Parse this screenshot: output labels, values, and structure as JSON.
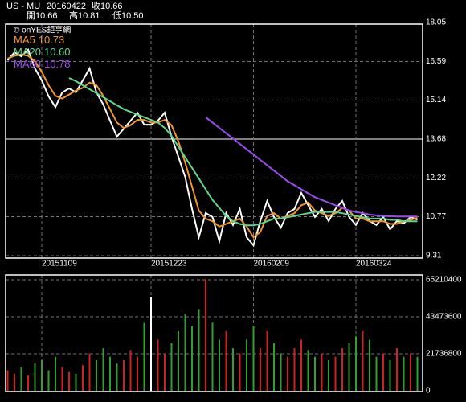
{
  "chart_data": [
    {
      "type": "line",
      "title": "US - MU",
      "date": "20160422",
      "close_label": "收10.66",
      "quote": [
        "開10.66",
        "高10.81",
        "低10.50"
      ],
      "source": "© onYES鉅亨網",
      "ylim": [
        9.31,
        18.05
      ],
      "yticks": [
        9.31,
        10.77,
        12.22,
        13.68,
        15.14,
        16.59,
        18.05
      ],
      "grid": true,
      "categories": [
        null,
        null,
        null,
        null,
        null,
        "20151109",
        null,
        null,
        null,
        null,
        null,
        null,
        null,
        null,
        null,
        null,
        null,
        null,
        null,
        null,
        null,
        "20151223",
        null,
        null,
        null,
        null,
        null,
        null,
        null,
        null,
        null,
        null,
        null,
        null,
        null,
        null,
        "20160209",
        null,
        null,
        null,
        null,
        null,
        null,
        null,
        null,
        null,
        null,
        null,
        null,
        null,
        null,
        "20160324",
        null,
        null,
        null,
        null,
        null,
        null,
        null,
        null,
        null
      ],
      "series": [
        {
          "color": "#ffffff",
          "values": [
            16.63,
            16.93,
            16.78,
            17.03,
            16.33,
            15.88,
            15.28,
            14.88,
            15.43,
            15.58,
            15.43,
            15.88,
            16.33,
            15.43,
            14.98,
            14.37,
            13.77,
            14.07,
            14.37,
            14.67,
            14.22,
            14.22,
            14.37,
            14.67,
            13.77,
            13.02,
            12.26,
            11.06,
            10.0,
            10.91,
            10.76,
            9.85,
            10.91,
            10.46,
            11.06,
            10.0,
            9.7,
            10.61,
            11.36,
            10.76,
            10.36,
            10.91,
            11.06,
            11.66,
            11.21,
            10.76,
            11.06,
            10.61,
            11.06,
            11.36,
            10.76,
            10.46,
            10.91,
            10.61,
            10.46,
            10.76,
            10.3,
            10.61,
            10.52,
            10.76,
            10.66
          ]
        },
        {
          "name": "MA5",
          "legend_value": "10.73",
          "color": "#f0962c",
          "values": [
            16.7,
            16.8,
            16.85,
            16.8,
            16.6,
            16.2,
            15.7,
            15.3,
            15.2,
            15.35,
            15.5,
            15.6,
            15.8,
            15.7,
            15.3,
            14.8,
            14.3,
            14.1,
            14.2,
            14.4,
            14.4,
            14.3,
            14.3,
            14.4,
            14.2,
            13.6,
            12.8,
            11.9,
            11.0,
            10.7,
            10.6,
            10.4,
            10.5,
            10.6,
            10.7,
            10.4,
            10.0,
            10.2,
            10.8,
            10.9,
            10.7,
            10.8,
            10.9,
            11.2,
            11.3,
            11.0,
            10.9,
            10.8,
            10.9,
            11.1,
            11.0,
            10.7,
            10.7,
            10.6,
            10.6,
            10.6,
            10.5,
            10.5,
            10.6,
            10.65,
            10.73
          ]
        },
        {
          "name": "MA20",
          "legend_value": "10.60",
          "color": "#5ed68a",
          "values": [
            null,
            null,
            null,
            null,
            null,
            null,
            null,
            null,
            null,
            15.97,
            15.85,
            15.7,
            15.55,
            15.4,
            15.25,
            15.1,
            14.95,
            14.8,
            14.7,
            14.6,
            14.5,
            14.4,
            14.3,
            14.1,
            13.8,
            13.4,
            13.0,
            12.6,
            12.2,
            11.8,
            11.4,
            11.1,
            10.8,
            10.6,
            10.5,
            10.45,
            10.45,
            10.5,
            10.6,
            10.7,
            10.7,
            10.75,
            10.8,
            10.85,
            10.9,
            10.95,
            10.95,
            10.95,
            10.95,
            10.9,
            10.85,
            10.8,
            10.75,
            10.7,
            10.7,
            10.7,
            10.65,
            10.65,
            10.6,
            10.6,
            10.6
          ]
        },
        {
          "name": "MA60",
          "legend_value": "10.78",
          "color": "#9a4cf0",
          "values": [
            null,
            null,
            null,
            null,
            null,
            null,
            null,
            null,
            null,
            null,
            null,
            null,
            null,
            null,
            null,
            null,
            null,
            null,
            null,
            null,
            null,
            null,
            null,
            null,
            null,
            null,
            null,
            null,
            null,
            14.5,
            14.3,
            14.1,
            13.9,
            13.7,
            13.5,
            13.3,
            13.1,
            12.9,
            12.7,
            12.5,
            12.3,
            12.1,
            11.95,
            11.8,
            11.65,
            11.5,
            11.4,
            11.3,
            11.2,
            11.1,
            11.0,
            10.95,
            10.9,
            10.85,
            10.82,
            10.8,
            10.79,
            10.78,
            10.78,
            10.78,
            10.78
          ]
        }
      ]
    },
    {
      "type": "bar",
      "ylim": [
        0,
        65210400
      ],
      "yticks": [
        0,
        21736800,
        43473600,
        65210400
      ],
      "grid": true,
      "values": [
        12000000,
        10000000,
        14000000,
        9000000,
        16000000,
        18000000,
        12000000,
        20000000,
        14000000,
        11000000,
        10000000,
        15000000,
        22000000,
        18000000,
        25000000,
        20000000,
        16000000,
        18000000,
        24000000,
        20000000,
        40000000,
        55000000,
        30000000,
        22000000,
        28000000,
        35000000,
        45000000,
        38000000,
        48000000,
        65000000,
        40000000,
        30000000,
        35000000,
        25000000,
        22000000,
        30000000,
        38000000,
        25000000,
        35000000,
        28000000,
        22000000,
        20000000,
        25000000,
        30000000,
        24000000,
        20000000,
        22000000,
        18000000,
        20000000,
        25000000,
        28000000,
        32000000,
        35000000,
        30000000,
        20000000,
        22000000,
        18000000,
        25000000,
        20000000,
        22000000,
        20000000
      ],
      "bar_colors": [
        "#d02020",
        "#d02020",
        "#30a030",
        "#d02020",
        "#30a030",
        "#30a030",
        "#30a030",
        "#30a030",
        "#d02020",
        "#d02020",
        "#30a030",
        "#d02020",
        "#d02020",
        "#30a030",
        "#30a030",
        "#30a030",
        "#30a030",
        "#d02020",
        "#d02020",
        "#d02020",
        "#30a030",
        "#ffffff",
        "#d02020",
        "#d02020",
        "#30a030",
        "#30a030",
        "#30a030",
        "#30a030",
        "#30a030",
        "#d02020",
        "#30a030",
        "#30a030",
        "#d02020",
        "#30a030",
        "#d02020",
        "#30a030",
        "#30a030",
        "#d02020",
        "#d02020",
        "#30a030",
        "#30a030",
        "#d02020",
        "#d02020",
        "#d02020",
        "#30a030",
        "#30a030",
        "#d02020",
        "#30a030",
        "#d02020",
        "#d02020",
        "#30a030",
        "#30a030",
        "#d02020",
        "#30a030",
        "#30a030",
        "#d02020",
        "#30a030",
        "#d02020",
        "#30a030",
        "#d02020",
        "#30a030"
      ]
    }
  ]
}
